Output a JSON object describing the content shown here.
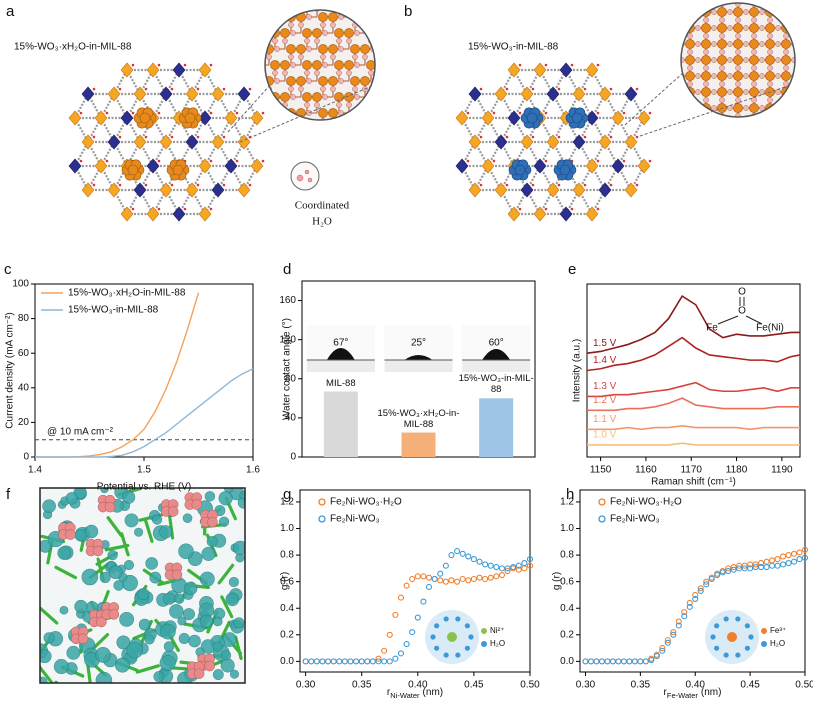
{
  "illustrations": [
    {
      "label": "a",
      "title": "15%-WO₃·xH₂O-in-MIL-88",
      "note_lines": [
        "Coordinated",
        "H₂O"
      ]
    },
    {
      "label": "b",
      "title": "15%-WO₃-in-MIL-88"
    },
    {
      "label": "f"
    }
  ],
  "chart_data": [
    {
      "label": "c",
      "type": "line",
      "xlabel": "Potential vs. RHE (V)",
      "ylabel": "Current density (mA cm⁻²)",
      "x": [
        1.4,
        1.41,
        1.42,
        1.43,
        1.44,
        1.45,
        1.46,
        1.47,
        1.48,
        1.49,
        1.5,
        1.51,
        1.52,
        1.53,
        1.54,
        1.55,
        1.56,
        1.57,
        1.58,
        1.59,
        1.6
      ],
      "xlim": [
        1.4,
        1.6
      ],
      "xticks": [
        1.4,
        1.5,
        1.6
      ],
      "ylim": [
        0,
        100
      ],
      "yticks": [
        0,
        20,
        40,
        60,
        80,
        100
      ],
      "legend": "upper left",
      "series": [
        {
          "name": "15%-WO₃·xH₂O-in-MIL-88",
          "color": "#f5a15a",
          "values": [
            0,
            0,
            0,
            0,
            0.2,
            0.6,
            1.5,
            3,
            6,
            10,
            16,
            26,
            39,
            55,
            74,
            95,
            null,
            null,
            null,
            null,
            null
          ]
        },
        {
          "name": "15%-WO₃-in-MIL-88",
          "color": "#8fb8d8",
          "values": [
            0,
            0,
            0,
            0,
            0,
            0,
            0,
            0.3,
            1,
            3,
            6,
            10,
            14,
            19,
            24,
            29,
            34,
            39,
            44,
            48,
            51
          ]
        }
      ],
      "reference_line": {
        "value": 10,
        "label": "@ 10 mA cm⁻²"
      }
    },
    {
      "label": "d",
      "type": "bar",
      "ylabel": "Water contact angle (°)",
      "categories": [
        "MIL-88",
        "15%-WO₃·xH₂O-in-MIL-88",
        "15%-WO₃-in-MIL-88"
      ],
      "values": [
        67,
        25,
        60
      ],
      "value_labels": [
        "67°",
        "25°",
        "60°"
      ],
      "colors": [
        "#d9d9d9",
        "#f5b07a",
        "#9dc3e6"
      ],
      "ylim": [
        0,
        180
      ],
      "yticks": [
        0,
        40,
        80,
        120,
        160
      ]
    },
    {
      "label": "e",
      "type": "line",
      "xlabel": "Raman shift (cm⁻¹)",
      "ylabel": "Intensity (a.u.)",
      "x": [
        1147,
        1150,
        1153,
        1156,
        1159,
        1162,
        1165,
        1168,
        1171,
        1174,
        1177,
        1180,
        1183,
        1186,
        1189,
        1192,
        1194
      ],
      "xlim": [
        1147,
        1194
      ],
      "xticks": [
        1150,
        1160,
        1170,
        1180,
        1190
      ],
      "ylim": [
        0,
        10
      ],
      "series": [
        {
          "name": "1.5 V",
          "color": "#8b1a1a",
          "values": [
            6.0,
            6.1,
            6.3,
            6.5,
            6.8,
            7.2,
            8.0,
            9.3,
            8.8,
            7.4,
            6.9,
            7.1,
            7.0,
            7.0,
            7.1,
            7.2,
            7.2
          ]
        },
        {
          "name": "1.4 V",
          "color": "#b22222",
          "values": [
            5.0,
            5.1,
            5.3,
            5.4,
            5.6,
            5.9,
            6.4,
            6.9,
            6.3,
            5.9,
            5.8,
            5.7,
            5.6,
            5.6,
            5.5,
            5.8,
            5.9
          ]
        },
        {
          "name": "1.3 V",
          "color": "#d9433a",
          "values": [
            3.5,
            3.5,
            3.6,
            3.6,
            3.7,
            3.8,
            3.9,
            4.1,
            4.3,
            3.9,
            3.8,
            3.8,
            3.9,
            4.0,
            3.8,
            4.0,
            4.0
          ]
        },
        {
          "name": "1.2 V",
          "color": "#e8705a",
          "values": [
            2.7,
            2.7,
            2.7,
            2.8,
            2.8,
            2.9,
            3.1,
            3.4,
            3.0,
            2.9,
            2.8,
            2.8,
            2.8,
            2.8,
            2.9,
            2.9,
            2.9
          ]
        },
        {
          "name": "1.1 V",
          "color": "#f0986c",
          "values": [
            1.6,
            1.6,
            1.6,
            1.7,
            1.6,
            1.7,
            1.7,
            1.8,
            1.7,
            1.7,
            1.7,
            1.7,
            1.6,
            1.7,
            1.7,
            1.7,
            1.7
          ]
        },
        {
          "name": "1.0 V",
          "color": "#f5c07f",
          "values": [
            0.7,
            0.7,
            0.7,
            0.7,
            0.7,
            0.7,
            0.7,
            0.8,
            0.7,
            0.7,
            0.7,
            0.7,
            0.7,
            0.7,
            0.7,
            0.7,
            0.7
          ]
        }
      ],
      "inset_labels": [
        "O",
        "O",
        "Fe",
        "Fe(Ni)"
      ]
    },
    {
      "label": "g",
      "type": "scatter",
      "xlabel": "r",
      "xlabel_sub": "Ni-Water",
      "xlabel_unit": "(nm)",
      "ylabel": "g (r)",
      "x": [
        0.3,
        0.305,
        0.31,
        0.315,
        0.32,
        0.325,
        0.33,
        0.335,
        0.34,
        0.345,
        0.35,
        0.355,
        0.36,
        0.365,
        0.37,
        0.375,
        0.38,
        0.385,
        0.39,
        0.395,
        0.4,
        0.405,
        0.41,
        0.415,
        0.42,
        0.425,
        0.43,
        0.435,
        0.44,
        0.445,
        0.45,
        0.455,
        0.46,
        0.465,
        0.47,
        0.475,
        0.48,
        0.485,
        0.49,
        0.495,
        0.5
      ],
      "xlim": [
        0.295,
        0.5
      ],
      "xticks": [
        {
          "value": 0.3,
          "label": "0.30"
        },
        0.35,
        {
          "value": 0.4,
          "label": "0.40"
        },
        0.45,
        {
          "value": 0.5,
          "label": "0.50"
        }
      ],
      "ylim": [
        -0.08,
        1.29
      ],
      "yticks": [
        {
          "value": 0,
          "label": "0.0"
        },
        0.2,
        0.4,
        0.6,
        0.8,
        {
          "value": 1,
          "label": "1.0"
        },
        1.2
      ],
      "legend": "upper left",
      "series": [
        {
          "name": "Fe₂Ni-WO₃·H₂O",
          "color": "#f07f2a",
          "values": [
            0,
            0,
            0,
            0,
            0,
            0,
            0,
            0,
            0,
            0,
            0,
            0,
            0,
            0.02,
            0.08,
            0.2,
            0.35,
            0.48,
            0.57,
            0.62,
            0.64,
            0.64,
            0.63,
            0.62,
            0.61,
            0.6,
            0.61,
            0.6,
            0.62,
            0.61,
            0.62,
            0.63,
            0.62,
            0.63,
            0.64,
            0.65,
            0.68,
            0.7,
            0.69,
            0.7,
            0.72
          ]
        },
        {
          "name": "Fe₂Ni-WO₃",
          "color": "#3a9ad9",
          "values": [
            0,
            0,
            0,
            0,
            0,
            0,
            0,
            0,
            0,
            0,
            0,
            0,
            0,
            0,
            0,
            0,
            0.02,
            0.06,
            0.13,
            0.22,
            0.33,
            0.45,
            0.56,
            0.62,
            0.66,
            0.72,
            0.8,
            0.83,
            0.81,
            0.79,
            0.77,
            0.75,
            0.73,
            0.72,
            0.71,
            0.7,
            0.7,
            0.71,
            0.72,
            0.74,
            0.77
          ]
        }
      ],
      "inset_labels": [
        "Ni²⁺",
        "H₂O"
      ]
    },
    {
      "label": "h",
      "type": "scatter",
      "xlabel": "r",
      "xlabel_sub": "Fe-Water",
      "xlabel_unit": "(nm)",
      "ylabel": "g (r)",
      "x": [
        0.3,
        0.305,
        0.31,
        0.315,
        0.32,
        0.325,
        0.33,
        0.335,
        0.34,
        0.345,
        0.35,
        0.355,
        0.36,
        0.365,
        0.37,
        0.375,
        0.38,
        0.385,
        0.39,
        0.395,
        0.4,
        0.405,
        0.41,
        0.415,
        0.42,
        0.425,
        0.43,
        0.435,
        0.44,
        0.445,
        0.45,
        0.455,
        0.46,
        0.465,
        0.47,
        0.475,
        0.48,
        0.485,
        0.49,
        0.495,
        0.5
      ],
      "xlim": [
        0.295,
        0.5
      ],
      "xticks": [
        {
          "value": 0.3,
          "label": "0.30"
        },
        0.35,
        {
          "value": 0.4,
          "label": "0.40"
        },
        0.45,
        {
          "value": 0.5,
          "label": "0.50"
        }
      ],
      "ylim": [
        -0.08,
        1.29
      ],
      "yticks": [
        {
          "value": 0,
          "label": "0.0"
        },
        0.2,
        0.4,
        0.6,
        0.8,
        {
          "value": 1,
          "label": "1.0"
        },
        1.2
      ],
      "legend": "upper left",
      "series": [
        {
          "name": "Fe₂Ni-WO₃·H₂O",
          "color": "#f07f2a",
          "values": [
            0,
            0,
            0,
            0,
            0,
            0,
            0,
            0,
            0,
            0,
            0,
            0,
            0.02,
            0.05,
            0.1,
            0.16,
            0.22,
            0.3,
            0.37,
            0.44,
            0.5,
            0.55,
            0.6,
            0.63,
            0.66,
            0.68,
            0.7,
            0.71,
            0.72,
            0.72,
            0.73,
            0.73,
            0.74,
            0.75,
            0.76,
            0.77,
            0.79,
            0.8,
            0.81,
            0.82,
            0.84
          ]
        },
        {
          "name": "Fe₂Ni-WO₃",
          "color": "#3a9ad9",
          "values": [
            0,
            0,
            0,
            0,
            0,
            0,
            0,
            0,
            0,
            0,
            0,
            0,
            0.01,
            0.04,
            0.08,
            0.14,
            0.2,
            0.27,
            0.34,
            0.41,
            0.47,
            0.53,
            0.58,
            0.62,
            0.65,
            0.67,
            0.68,
            0.69,
            0.7,
            0.7,
            0.7,
            0.71,
            0.71,
            0.71,
            0.72,
            0.72,
            0.73,
            0.74,
            0.75,
            0.77,
            0.78
          ]
        }
      ],
      "inset_labels": [
        "Fe³⁺",
        "H₂O"
      ]
    }
  ]
}
